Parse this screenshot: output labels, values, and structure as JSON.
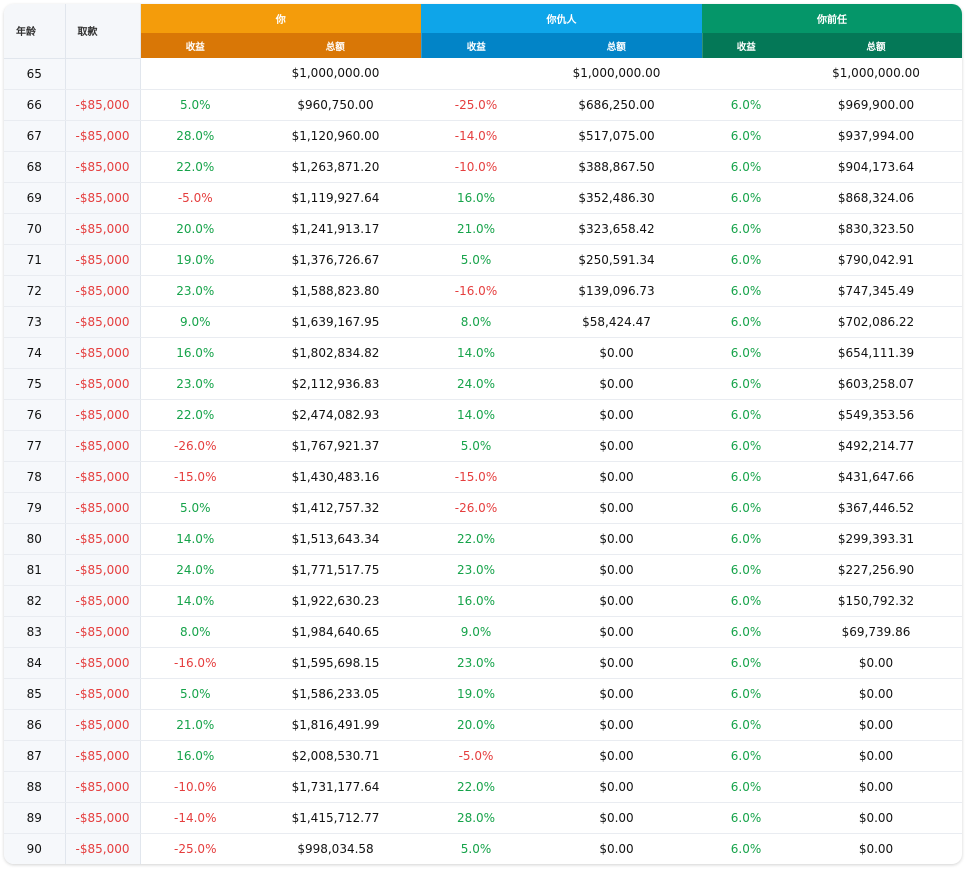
{
  "headers": {
    "age": "年龄",
    "withdrawal": "取款",
    "group_you": "你",
    "group_enemy": "你仇人",
    "group_ex": "你前任",
    "return": "收益",
    "total": "总额"
  },
  "colors": {
    "you": "#f49c0b",
    "you_dark": "#d97706",
    "enemy": "#0ea5e9",
    "enemy_dark": "#0284c7",
    "ex": "#059669",
    "ex_dark": "#047857",
    "positive": "#16a34a",
    "negative": "#e53e3e"
  },
  "rows": [
    {
      "age": "65",
      "wd": "",
      "you_ret": "",
      "you_total": "$1,000,000.00",
      "enemy_ret": "",
      "enemy_total": "$1,000,000.00",
      "ex_ret": "",
      "ex_total": "$1,000,000.00"
    },
    {
      "age": "66",
      "wd": "-$85,000",
      "you_ret": "5.0%",
      "you_total": "$960,750.00",
      "enemy_ret": "-25.0%",
      "enemy_total": "$686,250.00",
      "ex_ret": "6.0%",
      "ex_total": "$969,900.00"
    },
    {
      "age": "67",
      "wd": "-$85,000",
      "you_ret": "28.0%",
      "you_total": "$1,120,960.00",
      "enemy_ret": "-14.0%",
      "enemy_total": "$517,075.00",
      "ex_ret": "6.0%",
      "ex_total": "$937,994.00"
    },
    {
      "age": "68",
      "wd": "-$85,000",
      "you_ret": "22.0%",
      "you_total": "$1,263,871.20",
      "enemy_ret": "-10.0%",
      "enemy_total": "$388,867.50",
      "ex_ret": "6.0%",
      "ex_total": "$904,173.64"
    },
    {
      "age": "69",
      "wd": "-$85,000",
      "you_ret": "-5.0%",
      "you_total": "$1,119,927.64",
      "enemy_ret": "16.0%",
      "enemy_total": "$352,486.30",
      "ex_ret": "6.0%",
      "ex_total": "$868,324.06"
    },
    {
      "age": "70",
      "wd": "-$85,000",
      "you_ret": "20.0%",
      "you_total": "$1,241,913.17",
      "enemy_ret": "21.0%",
      "enemy_total": "$323,658.42",
      "ex_ret": "6.0%",
      "ex_total": "$830,323.50"
    },
    {
      "age": "71",
      "wd": "-$85,000",
      "you_ret": "19.0%",
      "you_total": "$1,376,726.67",
      "enemy_ret": "5.0%",
      "enemy_total": "$250,591.34",
      "ex_ret": "6.0%",
      "ex_total": "$790,042.91"
    },
    {
      "age": "72",
      "wd": "-$85,000",
      "you_ret": "23.0%",
      "you_total": "$1,588,823.80",
      "enemy_ret": "-16.0%",
      "enemy_total": "$139,096.73",
      "ex_ret": "6.0%",
      "ex_total": "$747,345.49"
    },
    {
      "age": "73",
      "wd": "-$85,000",
      "you_ret": "9.0%",
      "you_total": "$1,639,167.95",
      "enemy_ret": "8.0%",
      "enemy_total": "$58,424.47",
      "ex_ret": "6.0%",
      "ex_total": "$702,086.22"
    },
    {
      "age": "74",
      "wd": "-$85,000",
      "you_ret": "16.0%",
      "you_total": "$1,802,834.82",
      "enemy_ret": "14.0%",
      "enemy_total": "$0.00",
      "ex_ret": "6.0%",
      "ex_total": "$654,111.39"
    },
    {
      "age": "75",
      "wd": "-$85,000",
      "you_ret": "23.0%",
      "you_total": "$2,112,936.83",
      "enemy_ret": "24.0%",
      "enemy_total": "$0.00",
      "ex_ret": "6.0%",
      "ex_total": "$603,258.07"
    },
    {
      "age": "76",
      "wd": "-$85,000",
      "you_ret": "22.0%",
      "you_total": "$2,474,082.93",
      "enemy_ret": "14.0%",
      "enemy_total": "$0.00",
      "ex_ret": "6.0%",
      "ex_total": "$549,353.56"
    },
    {
      "age": "77",
      "wd": "-$85,000",
      "you_ret": "-26.0%",
      "you_total": "$1,767,921.37",
      "enemy_ret": "5.0%",
      "enemy_total": "$0.00",
      "ex_ret": "6.0%",
      "ex_total": "$492,214.77"
    },
    {
      "age": "78",
      "wd": "-$85,000",
      "you_ret": "-15.0%",
      "you_total": "$1,430,483.16",
      "enemy_ret": "-15.0%",
      "enemy_total": "$0.00",
      "ex_ret": "6.0%",
      "ex_total": "$431,647.66"
    },
    {
      "age": "79",
      "wd": "-$85,000",
      "you_ret": "5.0%",
      "you_total": "$1,412,757.32",
      "enemy_ret": "-26.0%",
      "enemy_total": "$0.00",
      "ex_ret": "6.0%",
      "ex_total": "$367,446.52"
    },
    {
      "age": "80",
      "wd": "-$85,000",
      "you_ret": "14.0%",
      "you_total": "$1,513,643.34",
      "enemy_ret": "22.0%",
      "enemy_total": "$0.00",
      "ex_ret": "6.0%",
      "ex_total": "$299,393.31"
    },
    {
      "age": "81",
      "wd": "-$85,000",
      "you_ret": "24.0%",
      "you_total": "$1,771,517.75",
      "enemy_ret": "23.0%",
      "enemy_total": "$0.00",
      "ex_ret": "6.0%",
      "ex_total": "$227,256.90"
    },
    {
      "age": "82",
      "wd": "-$85,000",
      "you_ret": "14.0%",
      "you_total": "$1,922,630.23",
      "enemy_ret": "16.0%",
      "enemy_total": "$0.00",
      "ex_ret": "6.0%",
      "ex_total": "$150,792.32"
    },
    {
      "age": "83",
      "wd": "-$85,000",
      "you_ret": "8.0%",
      "you_total": "$1,984,640.65",
      "enemy_ret": "9.0%",
      "enemy_total": "$0.00",
      "ex_ret": "6.0%",
      "ex_total": "$69,739.86"
    },
    {
      "age": "84",
      "wd": "-$85,000",
      "you_ret": "-16.0%",
      "you_total": "$1,595,698.15",
      "enemy_ret": "23.0%",
      "enemy_total": "$0.00",
      "ex_ret": "6.0%",
      "ex_total": "$0.00"
    },
    {
      "age": "85",
      "wd": "-$85,000",
      "you_ret": "5.0%",
      "you_total": "$1,586,233.05",
      "enemy_ret": "19.0%",
      "enemy_total": "$0.00",
      "ex_ret": "6.0%",
      "ex_total": "$0.00"
    },
    {
      "age": "86",
      "wd": "-$85,000",
      "you_ret": "21.0%",
      "you_total": "$1,816,491.99",
      "enemy_ret": "20.0%",
      "enemy_total": "$0.00",
      "ex_ret": "6.0%",
      "ex_total": "$0.00"
    },
    {
      "age": "87",
      "wd": "-$85,000",
      "you_ret": "16.0%",
      "you_total": "$2,008,530.71",
      "enemy_ret": "-5.0%",
      "enemy_total": "$0.00",
      "ex_ret": "6.0%",
      "ex_total": "$0.00"
    },
    {
      "age": "88",
      "wd": "-$85,000",
      "you_ret": "-10.0%",
      "you_total": "$1,731,177.64",
      "enemy_ret": "22.0%",
      "enemy_total": "$0.00",
      "ex_ret": "6.0%",
      "ex_total": "$0.00"
    },
    {
      "age": "89",
      "wd": "-$85,000",
      "you_ret": "-14.0%",
      "you_total": "$1,415,712.77",
      "enemy_ret": "28.0%",
      "enemy_total": "$0.00",
      "ex_ret": "6.0%",
      "ex_total": "$0.00"
    },
    {
      "age": "90",
      "wd": "-$85,000",
      "you_ret": "-25.0%",
      "you_total": "$998,034.58",
      "enemy_ret": "5.0%",
      "enemy_total": "$0.00",
      "ex_ret": "6.0%",
      "ex_total": "$0.00"
    }
  ]
}
